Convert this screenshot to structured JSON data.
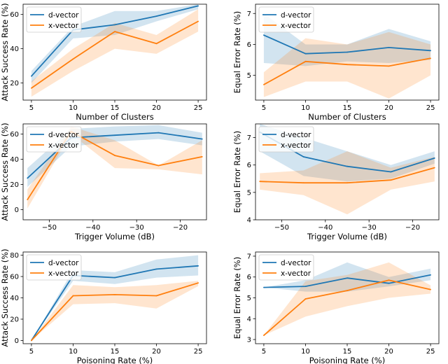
{
  "figure": {
    "name": "speaker-verification-backdoor-results"
  },
  "colors": {
    "d_vector": "#1f77b4",
    "x_vector": "#ff7f0e",
    "axes": "#000000"
  },
  "chart_data": [
    {
      "type": "line",
      "id": "asr-clusters",
      "title": "",
      "xlabel": "Number of Clusters",
      "ylabel": "Attack Success Rate (%)",
      "xlim": [
        4.0,
        26.0
      ],
      "ylim": [
        10,
        66
      ],
      "xticks": [
        5,
        10,
        15,
        20,
        25
      ],
      "xtick_labels": [
        "5",
        "10",
        "15",
        "20",
        "25"
      ],
      "yticks": [
        20,
        40,
        60
      ],
      "ytick_labels": [
        "20",
        "40",
        "60"
      ],
      "legend": "top-left",
      "x": [
        5,
        10,
        15,
        20,
        25
      ],
      "series": [
        {
          "name": "d-vector",
          "color": "d_vector",
          "values": [
            24,
            51,
            54,
            59,
            65
          ],
          "lower": [
            20,
            46,
            48,
            56,
            63
          ],
          "upper": [
            27,
            53,
            62,
            62,
            66
          ]
        },
        {
          "name": "x-vector",
          "color": "x_vector",
          "values": [
            17,
            34,
            50,
            43,
            56
          ],
          "lower": [
            12,
            27,
            40,
            37,
            50
          ],
          "upper": [
            21,
            40,
            55,
            48,
            63
          ]
        }
      ]
    },
    {
      "type": "line",
      "id": "eer-clusters",
      "title": "",
      "xlabel": "Number of Clusters",
      "ylabel": "Equal Error Rate (%)",
      "xlim": [
        4.0,
        26.0
      ],
      "ylim": [
        4.2,
        7.3
      ],
      "xticks": [
        5,
        10,
        15,
        20,
        25
      ],
      "xtick_labels": [
        "5",
        "10",
        "15",
        "20",
        "25"
      ],
      "yticks": [
        5,
        6,
        7
      ],
      "ytick_labels": [
        "5",
        "6",
        "7"
      ],
      "legend": "top-left",
      "x": [
        5,
        10,
        15,
        20,
        25
      ],
      "series": [
        {
          "name": "d-vector",
          "color": "d_vector",
          "values": [
            6.3,
            5.7,
            5.75,
            5.9,
            5.8
          ],
          "lower": [
            5.4,
            5.3,
            5.45,
            5.4,
            5.5
          ],
          "upper": [
            7.0,
            6.0,
            6.0,
            6.5,
            6.1
          ]
        },
        {
          "name": "x-vector",
          "color": "x_vector",
          "values": [
            4.7,
            5.45,
            5.35,
            5.3,
            5.55
          ],
          "lower": [
            4.3,
            4.8,
            4.8,
            4.25,
            5.0
          ],
          "upper": [
            5.1,
            6.2,
            6.0,
            6.4,
            6.0
          ]
        }
      ]
    },
    {
      "type": "line",
      "id": "asr-trigger-volume",
      "title": "",
      "xlabel": "Trigger Volume (dB)",
      "ylabel": "Attack Success Rate (%)",
      "xlim": [
        -56,
        -14
      ],
      "ylim": [
        -8,
        68
      ],
      "xticks": [
        -50,
        -40,
        -30,
        -20
      ],
      "xtick_labels": [
        "−50",
        "−40",
        "−30",
        "−20"
      ],
      "yticks": [
        0,
        20,
        40,
        60
      ],
      "ytick_labels": [
        "0",
        "20",
        "40",
        "60"
      ],
      "legend": "top-left",
      "x": [
        -55,
        -45,
        -35,
        -25,
        -15
      ],
      "series": [
        {
          "name": "d-vector",
          "color": "d_vector",
          "values": [
            25,
            57,
            59,
            61,
            56
          ],
          "lower": [
            18,
            50,
            54,
            56,
            51
          ],
          "upper": [
            33,
            64,
            66,
            67,
            61
          ]
        },
        {
          "name": "x-vector",
          "color": "x_vector",
          "values": [
            8,
            62,
            43,
            35,
            42
          ],
          "lower": [
            1,
            60,
            33,
            32,
            28
          ],
          "upper": [
            16,
            66,
            55,
            35,
            55
          ]
        }
      ]
    },
    {
      "type": "line",
      "id": "eer-trigger-volume",
      "title": "",
      "xlabel": "Trigger Volume (dB)",
      "ylabel": "Equal Error Rate (%)",
      "xlim": [
        -56,
        -14
      ],
      "ylim": [
        4,
        7.5
      ],
      "xticks": [
        -50,
        -40,
        -30,
        -20
      ],
      "xtick_labels": [
        "−50",
        "−40",
        "−30",
        "−20"
      ],
      "yticks": [
        4,
        5,
        6,
        7
      ],
      "ytick_labels": [
        "4",
        "5",
        "6",
        "7"
      ],
      "legend": "top-left",
      "x": [
        -55,
        -45,
        -35,
        -25,
        -15
      ],
      "series": [
        {
          "name": "d-vector",
          "color": "d_vector",
          "values": [
            7.2,
            6.3,
            5.95,
            5.75,
            6.25
          ],
          "lower": [
            6.5,
            5.6,
            5.4,
            5.5,
            6.05
          ],
          "upper": [
            7.5,
            7.0,
            6.5,
            6.0,
            6.5
          ]
        },
        {
          "name": "x-vector",
          "color": "x_vector",
          "values": [
            5.4,
            5.35,
            5.35,
            5.45,
            5.9
          ],
          "lower": [
            5.1,
            4.9,
            4.2,
            5.1,
            5.4
          ],
          "upper": [
            5.7,
            5.8,
            6.5,
            5.9,
            6.3
          ]
        }
      ]
    },
    {
      "type": "line",
      "id": "asr-poisoning-rate",
      "title": "",
      "xlabel": "Poisoning Rate (%)",
      "ylabel": "Attack Success Rate (%)",
      "xlim": [
        4.0,
        26.0
      ],
      "ylim": [
        -3,
        83
      ],
      "xticks": [
        5,
        10,
        15,
        20,
        25
      ],
      "xtick_labels": [
        "5",
        "10",
        "15",
        "20",
        "25"
      ],
      "yticks": [
        0,
        20,
        40,
        60,
        80
      ],
      "ytick_labels": [
        "0",
        "20",
        "40",
        "60",
        "80"
      ],
      "legend": "top-left",
      "x": [
        5,
        10,
        15,
        20,
        25
      ],
      "series": [
        {
          "name": "d-vector",
          "color": "d_vector",
          "values": [
            0,
            61,
            59,
            67,
            70
          ],
          "lower": [
            0,
            56,
            53,
            59,
            61
          ],
          "upper": [
            0,
            66,
            64,
            76,
            80
          ]
        },
        {
          "name": "x-vector",
          "color": "x_vector",
          "values": [
            0,
            42,
            43,
            42,
            54
          ],
          "lower": [
            0,
            34,
            35,
            30,
            51
          ],
          "upper": [
            0,
            52,
            50,
            52,
            56
          ]
        }
      ]
    },
    {
      "type": "line",
      "id": "eer-poisoning-rate",
      "title": "",
      "xlabel": "Poisoning Rate (%)",
      "ylabel": "Equal Error Rate (%)",
      "xlim": [
        4.0,
        26.0
      ],
      "ylim": [
        2.8,
        7.2
      ],
      "xticks": [
        5,
        10,
        15,
        20,
        25
      ],
      "xtick_labels": [
        "5",
        "10",
        "15",
        "20",
        "25"
      ],
      "yticks": [
        3,
        4,
        5,
        6,
        7
      ],
      "ytick_labels": [
        "3",
        "4",
        "5",
        "6",
        "7"
      ],
      "legend": "top-left",
      "x": [
        5,
        10,
        15,
        20,
        25
      ],
      "series": [
        {
          "name": "d-vector",
          "color": "d_vector",
          "values": [
            5.5,
            5.55,
            5.95,
            5.7,
            6.1
          ],
          "lower": [
            5.5,
            5.3,
            5.3,
            5.55,
            5.85
          ],
          "upper": [
            5.5,
            5.85,
            6.7,
            6.0,
            6.4
          ]
        },
        {
          "name": "x-vector",
          "color": "x_vector",
          "values": [
            3.2,
            4.95,
            5.35,
            5.85,
            5.4
          ],
          "lower": [
            3.2,
            4.1,
            4.6,
            5.0,
            5.2
          ],
          "upper": [
            3.2,
            5.8,
            6.1,
            6.7,
            5.6
          ]
        }
      ]
    }
  ]
}
